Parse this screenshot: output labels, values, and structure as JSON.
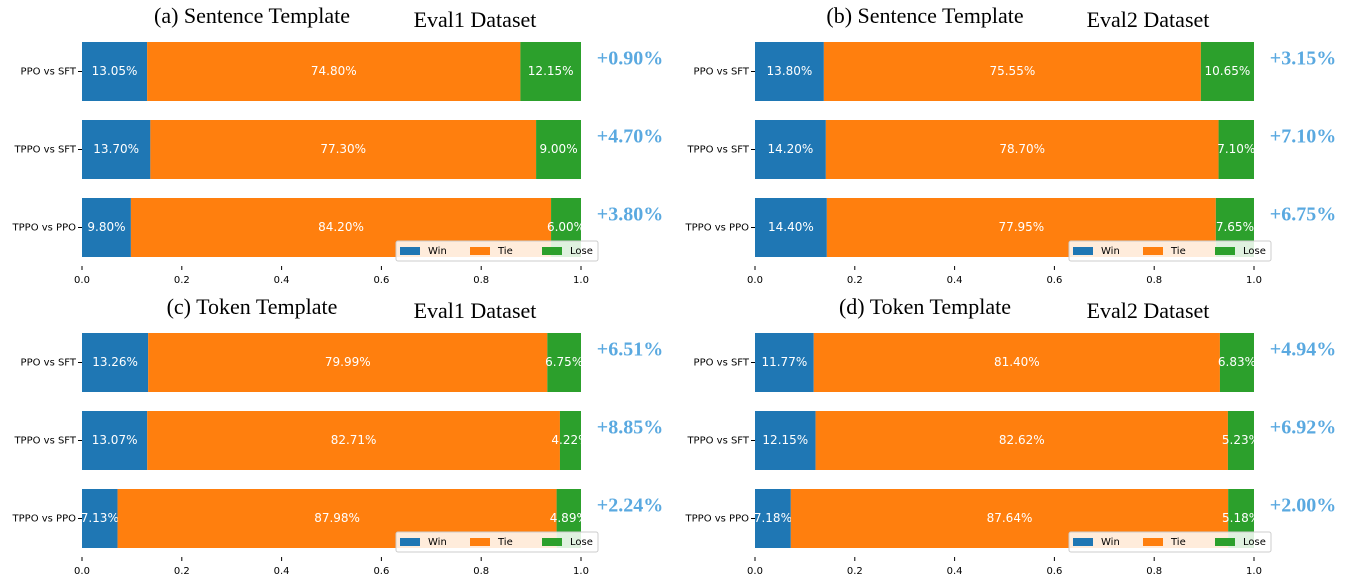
{
  "chart_data": [
    {
      "type": "bar",
      "orientation": "horizontal",
      "stacked": true,
      "title": "(a)  Sentence Template",
      "subtitle": "Eval1 Dataset",
      "categories": [
        "PPO vs SFT",
        "TPPO vs SFT",
        "TPPO vs PPO"
      ],
      "series": [
        {
          "name": "Win",
          "color": "#1f77b4",
          "values": [
            0.1305,
            0.137,
            0.098
          ],
          "value_labels": [
            "13.05%",
            "13.70%",
            "9.80%"
          ]
        },
        {
          "name": "Tie",
          "color": "#ff7f0e",
          "values": [
            0.748,
            0.773,
            0.842
          ],
          "value_labels": [
            "74.80%",
            "77.30%",
            "84.20%"
          ]
        },
        {
          "name": "Lose",
          "color": "#2ca02c",
          "values": [
            0.1215,
            0.09,
            0.06
          ],
          "value_labels": [
            "12.15%",
            "9.00%",
            "6.00%"
          ]
        }
      ],
      "annotations": [
        "+0.90%",
        "+4.70%",
        "+3.80%"
      ],
      "xlim": [
        0,
        1
      ],
      "xticks": [
        {
          "value": 0,
          "label": "0.0"
        },
        0.2,
        0.4,
        0.6,
        0.8,
        {
          "value": 1,
          "label": "1.0"
        }
      ],
      "legend": "lower right"
    },
    {
      "type": "bar",
      "orientation": "horizontal",
      "stacked": true,
      "title": "(b)  Sentence Template",
      "subtitle": "Eval2 Dataset",
      "categories": [
        "PPO vs SFT",
        "TPPO vs SFT",
        "TPPO vs PPO"
      ],
      "series": [
        {
          "name": "Win",
          "color": "#1f77b4",
          "values": [
            0.138,
            0.142,
            0.144
          ],
          "value_labels": [
            "13.80%",
            "14.20%",
            "14.40%"
          ]
        },
        {
          "name": "Tie",
          "color": "#ff7f0e",
          "values": [
            0.7555,
            0.787,
            0.7795
          ],
          "value_labels": [
            "75.55%",
            "78.70%",
            "77.95%"
          ]
        },
        {
          "name": "Lose",
          "color": "#2ca02c",
          "values": [
            0.1065,
            0.071,
            0.0765
          ],
          "value_labels": [
            "10.65%",
            "7.10%",
            "7.65%"
          ]
        }
      ],
      "annotations": [
        "+3.15%",
        "+7.10%",
        "+6.75%"
      ],
      "xlim": [
        0,
        1
      ],
      "xticks": [
        {
          "value": 0,
          "label": "0.0"
        },
        0.2,
        0.4,
        0.6,
        0.8,
        {
          "value": 1,
          "label": "1.0"
        }
      ],
      "legend": "lower right"
    },
    {
      "type": "bar",
      "orientation": "horizontal",
      "stacked": true,
      "title": "(c) Token Template",
      "subtitle": "Eval1 Dataset",
      "categories": [
        "PPO vs SFT",
        "TPPO vs SFT",
        "TPPO vs PPO"
      ],
      "series": [
        {
          "name": "Win",
          "color": "#1f77b4",
          "values": [
            0.1326,
            0.1307,
            0.0713
          ],
          "value_labels": [
            "13.26%",
            "13.07%",
            "7.13%"
          ]
        },
        {
          "name": "Tie",
          "color": "#ff7f0e",
          "values": [
            0.7999,
            0.8271,
            0.8798
          ],
          "value_labels": [
            "79.99%",
            "82.71%",
            "87.98%"
          ]
        },
        {
          "name": "Lose",
          "color": "#2ca02c",
          "values": [
            0.0675,
            0.0422,
            0.0489
          ],
          "value_labels": [
            "6.75%",
            "4.22%",
            "4.89%"
          ]
        }
      ],
      "annotations": [
        "+6.51%",
        "+8.85%",
        "+2.24%"
      ],
      "xlim": [
        0,
        1
      ],
      "xticks": [
        {
          "value": 0,
          "label": "0.0"
        },
        0.2,
        0.4,
        0.6,
        0.8,
        {
          "value": 1,
          "label": "1.0"
        }
      ],
      "legend": "lower right"
    },
    {
      "type": "bar",
      "orientation": "horizontal",
      "stacked": true,
      "title": "(d) Token Template",
      "subtitle": "Eval2 Dataset",
      "categories": [
        "PPO vs SFT",
        "TPPO vs SFT",
        "TPPO vs PPO"
      ],
      "series": [
        {
          "name": "Win",
          "color": "#1f77b4",
          "values": [
            0.1177,
            0.1215,
            0.0718
          ],
          "value_labels": [
            "11.77%",
            "12.15%",
            "7.18%"
          ]
        },
        {
          "name": "Tie",
          "color": "#ff7f0e",
          "values": [
            0.814,
            0.8262,
            0.8764
          ],
          "value_labels": [
            "81.40%",
            "82.62%",
            "87.64%"
          ]
        },
        {
          "name": "Lose",
          "color": "#2ca02c",
          "values": [
            0.0683,
            0.0523,
            0.0518
          ],
          "value_labels": [
            "6.83%",
            "5.23%",
            "5.18%"
          ]
        }
      ],
      "annotations": [
        "+4.94%",
        "+6.92%",
        "+2.00%"
      ],
      "xlim": [
        0,
        1
      ],
      "xticks": [
        {
          "value": 0,
          "label": "0.0"
        },
        0.2,
        0.4,
        0.6,
        0.8,
        {
          "value": 1,
          "label": "1.0"
        }
      ],
      "legend": "lower right"
    }
  ]
}
